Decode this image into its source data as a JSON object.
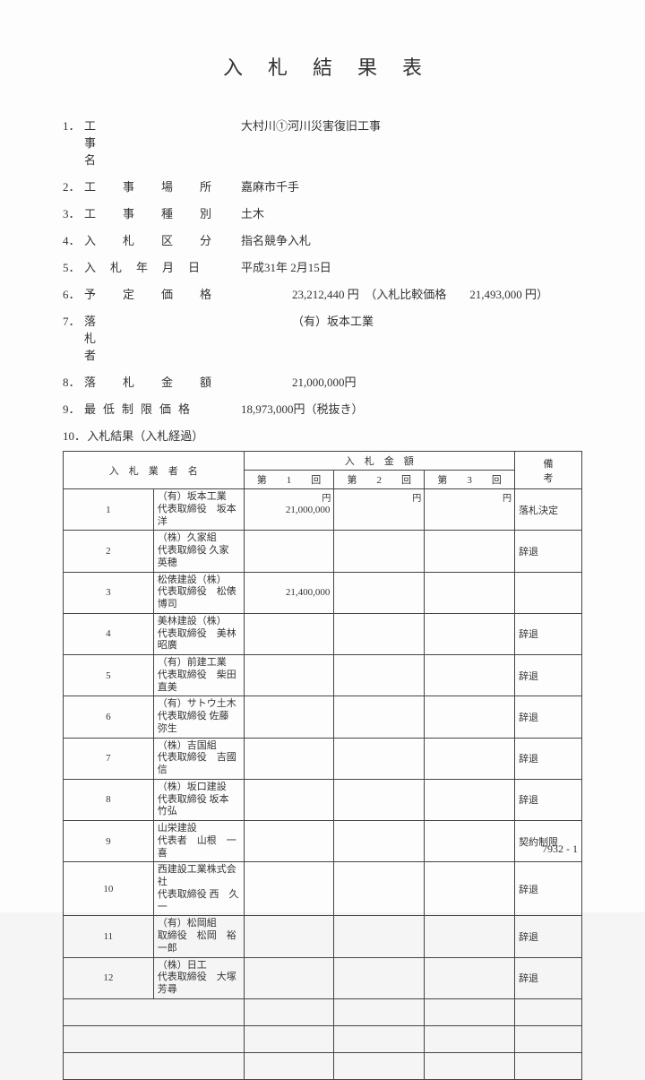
{
  "title": "入札結果表",
  "fields": [
    {
      "num": "1．",
      "label": "工事名",
      "label_cls": "spread-2",
      "value": "大村川①河川災害復旧工事",
      "indent": ""
    },
    {
      "num": "2．",
      "label": "工事場所",
      "label_cls": "spread-3",
      "value": "嘉麻市千手",
      "indent": ""
    },
    {
      "num": "3．",
      "label": "工事種別",
      "label_cls": "spread-3",
      "value": "土木",
      "indent": ""
    },
    {
      "num": "4．",
      "label": "入札区分",
      "label_cls": "spread-3",
      "value": "指名競争入札",
      "indent": ""
    },
    {
      "num": "5．",
      "label": "入札年月日",
      "label_cls": "spread-4",
      "value": "平成31年 2月15日",
      "indent": ""
    },
    {
      "num": "6．",
      "label": "予定価格",
      "label_cls": "spread-3",
      "value": "23,212,440 円　（入札比較価格　　21,493,000 円）",
      "indent": "indent1"
    },
    {
      "num": "7．",
      "label": "落札者",
      "label_cls": "spread-2",
      "value": "（有）坂本工業",
      "indent": "indent1"
    },
    {
      "num": "8．",
      "label": "落札金額",
      "label_cls": "spread-3",
      "value": "21,000,000円",
      "indent": "indent1"
    },
    {
      "num": "9．",
      "label": "最低制限価格",
      "label_cls": "spread-5",
      "value": "18,973,000円（税抜き）",
      "indent": ""
    }
  ],
  "section10": "入札結果（入札経過）",
  "table": {
    "header_name": "入　札　業　者　名",
    "header_amount": "入　札　金　額",
    "header_round1": "第　　1　　回",
    "header_round2": "第　　2　　回",
    "header_round3": "第　　3　　回",
    "header_note": "備　　　　　考",
    "yen": "円",
    "rows": [
      {
        "n": "1",
        "name1": "（有）坂本工業",
        "name2": "代表取締役　坂本　洋",
        "a1": "21,000,000",
        "a2": "",
        "a3": "",
        "note": "落札決定"
      },
      {
        "n": "2",
        "name1": "（株）久家組",
        "name2": "代表取締役 久家　英穂",
        "a1": "",
        "a2": "",
        "a3": "",
        "note": "辞退"
      },
      {
        "n": "3",
        "name1": "松俵建設（株）",
        "name2": "代表取締役　松俵　博司",
        "a1": "21,400,000",
        "a2": "",
        "a3": "",
        "note": ""
      },
      {
        "n": "4",
        "name1": "美林建設（株）",
        "name2": "代表取締役　美林昭廣",
        "a1": "",
        "a2": "",
        "a3": "",
        "note": "辞退"
      },
      {
        "n": "5",
        "name1": "（有）前建工業",
        "name2": "代表取締役　柴田　直美",
        "a1": "",
        "a2": "",
        "a3": "",
        "note": "辞退"
      },
      {
        "n": "6",
        "name1": "（有）サトウ土木",
        "name2": "代表取締役 佐藤　弥生",
        "a1": "",
        "a2": "",
        "a3": "",
        "note": "辞退"
      },
      {
        "n": "7",
        "name1": "（株）吉国組",
        "name2": "代表取締役　吉國　信",
        "a1": "",
        "a2": "",
        "a3": "",
        "note": "辞退"
      },
      {
        "n": "8",
        "name1": "（株）坂口建設",
        "name2": "代表取締役 坂本　竹弘",
        "a1": "",
        "a2": "",
        "a3": "",
        "note": "辞退"
      },
      {
        "n": "9",
        "name1": "山栄建設",
        "name2": "代表者　山根　一喜",
        "a1": "",
        "a2": "",
        "a3": "",
        "note": "契約制限"
      },
      {
        "n": "10",
        "name1": "西建設工業株式会社",
        "name2": "代表取締役 西　久一",
        "a1": "",
        "a2": "",
        "a3": "",
        "note": "辞退"
      },
      {
        "n": "11",
        "name1": "（有）松岡組",
        "name2": "取締役　松岡　裕一郎",
        "a1": "",
        "a2": "",
        "a3": "",
        "note": "辞退"
      },
      {
        "n": "12",
        "name1": "（株）日工",
        "name2": "代表取締役　大塚 芳尋",
        "a1": "",
        "a2": "",
        "a3": "",
        "note": "辞退"
      }
    ],
    "empty_rows": 3
  },
  "page_code": "7932 - 1"
}
